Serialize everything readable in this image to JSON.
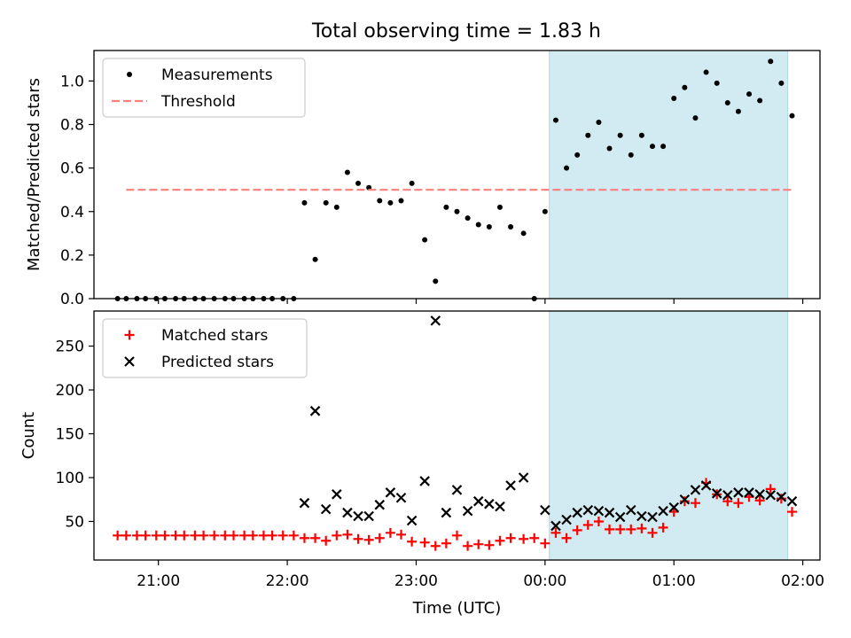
{
  "figure_title": "Total observing time = 1.83 h",
  "colors": {
    "highlight": "#add8e6",
    "threshold": "#ff7f7f",
    "measurement": "#000000",
    "matched": "#ff0000",
    "predicted": "#000000"
  },
  "chart_data": [
    {
      "type": "scatter",
      "title": "Total observing time = 1.83 h",
      "xlabel": "",
      "ylabel": "Matched/Predicted stars",
      "xlim": [
        "20:30",
        "02:08"
      ],
      "ylim": [
        0,
        1.14
      ],
      "x_ticks": [
        "21:00",
        "22:00",
        "23:00",
        "00:00",
        "01:00",
        "02:00"
      ],
      "y_ticks": [
        0.0,
        0.2,
        0.4,
        0.6,
        0.8,
        1.0
      ],
      "y_tick_labels": [
        "0.0",
        "0.2",
        "0.4",
        "0.6",
        "0.8",
        "1.0"
      ],
      "show_x_tick_labels": false,
      "grid": false,
      "legend_position": "top-left",
      "highlight_span": [
        "00:02",
        "01:53"
      ],
      "series": [
        {
          "name": "Measurements",
          "marker": "dot",
          "points": [
            [
              "20:41",
              0.0
            ],
            [
              "20:45",
              0.0
            ],
            [
              "20:50",
              0.0
            ],
            [
              "20:54",
              0.0
            ],
            [
              "20:59",
              0.0
            ],
            [
              "21:03",
              0.0
            ],
            [
              "21:08",
              0.0
            ],
            [
              "21:12",
              0.0
            ],
            [
              "21:17",
              0.0
            ],
            [
              "21:21",
              0.0
            ],
            [
              "21:26",
              0.0
            ],
            [
              "21:31",
              0.0
            ],
            [
              "21:35",
              0.0
            ],
            [
              "21:40",
              0.0
            ],
            [
              "21:44",
              0.0
            ],
            [
              "21:49",
              0.0
            ],
            [
              "21:53",
              0.0
            ],
            [
              "21:58",
              0.0
            ],
            [
              "22:03",
              0.0
            ],
            [
              "22:08",
              0.44
            ],
            [
              "22:13",
              0.18
            ],
            [
              "22:18",
              0.44
            ],
            [
              "22:23",
              0.42
            ],
            [
              "22:28",
              0.58
            ],
            [
              "22:33",
              0.53
            ],
            [
              "22:38",
              0.51
            ],
            [
              "22:43",
              0.45
            ],
            [
              "22:48",
              0.44
            ],
            [
              "22:53",
              0.45
            ],
            [
              "22:58",
              0.53
            ],
            [
              "23:04",
              0.27
            ],
            [
              "23:09",
              0.08
            ],
            [
              "23:14",
              0.42
            ],
            [
              "23:19",
              0.4
            ],
            [
              "23:24",
              0.37
            ],
            [
              "23:29",
              0.34
            ],
            [
              "23:34",
              0.33
            ],
            [
              "23:39",
              0.42
            ],
            [
              "23:44",
              0.33
            ],
            [
              "23:50",
              0.3
            ],
            [
              "23:55",
              0.0
            ],
            [
              "00:00",
              0.4
            ],
            [
              "00:05",
              0.82
            ],
            [
              "00:10",
              0.6
            ],
            [
              "00:15",
              0.66
            ],
            [
              "00:20",
              0.75
            ],
            [
              "00:25",
              0.81
            ],
            [
              "00:30",
              0.69
            ],
            [
              "00:35",
              0.75
            ],
            [
              "00:40",
              0.66
            ],
            [
              "00:45",
              0.75
            ],
            [
              "00:50",
              0.7
            ],
            [
              "00:55",
              0.7
            ],
            [
              "01:00",
              0.92
            ],
            [
              "01:05",
              0.97
            ],
            [
              "01:10",
              0.83
            ],
            [
              "01:15",
              1.04
            ],
            [
              "01:20",
              0.99
            ],
            [
              "01:25",
              0.9
            ],
            [
              "01:30",
              0.86
            ],
            [
              "01:35",
              0.94
            ],
            [
              "01:40",
              0.91
            ],
            [
              "01:45",
              1.09
            ],
            [
              "01:50",
              0.99
            ],
            [
              "01:55",
              0.84
            ]
          ]
        },
        {
          "name": "Threshold",
          "marker": "dashed-line",
          "points": [
            [
              "20:45",
              0.5
            ],
            [
              "01:56",
              0.5
            ]
          ]
        }
      ]
    },
    {
      "type": "scatter",
      "title": "",
      "xlabel": "Time (UTC)",
      "ylabel": "Count",
      "xlim": [
        "20:30",
        "02:08"
      ],
      "ylim": [
        6,
        290
      ],
      "x_ticks": [
        "21:00",
        "22:00",
        "23:00",
        "00:00",
        "01:00",
        "02:00"
      ],
      "y_ticks": [
        50,
        100,
        150,
        200,
        250
      ],
      "grid": false,
      "legend_position": "top-left",
      "highlight_span": [
        "00:02",
        "01:53"
      ],
      "series": [
        {
          "name": "Matched stars",
          "marker": "plus",
          "points": [
            [
              "20:41",
              34
            ],
            [
              "20:45",
              34
            ],
            [
              "20:50",
              34
            ],
            [
              "20:54",
              34
            ],
            [
              "20:59",
              34
            ],
            [
              "21:03",
              34
            ],
            [
              "21:08",
              34
            ],
            [
              "21:12",
              34
            ],
            [
              "21:17",
              34
            ],
            [
              "21:21",
              34
            ],
            [
              "21:26",
              34
            ],
            [
              "21:31",
              34
            ],
            [
              "21:35",
              34
            ],
            [
              "21:40",
              34
            ],
            [
              "21:44",
              34
            ],
            [
              "21:49",
              34
            ],
            [
              "21:53",
              34
            ],
            [
              "21:58",
              34
            ],
            [
              "22:03",
              34
            ],
            [
              "22:08",
              31
            ],
            [
              "22:13",
              31
            ],
            [
              "22:18",
              28
            ],
            [
              "22:23",
              34
            ],
            [
              "22:28",
              35
            ],
            [
              "22:33",
              30
            ],
            [
              "22:38",
              29
            ],
            [
              "22:43",
              31
            ],
            [
              "22:48",
              37
            ],
            [
              "22:53",
              35
            ],
            [
              "22:58",
              27
            ],
            [
              "23:04",
              26
            ],
            [
              "23:09",
              22
            ],
            [
              "23:14",
              25
            ],
            [
              "23:19",
              34
            ],
            [
              "23:24",
              22
            ],
            [
              "23:29",
              24
            ],
            [
              "23:34",
              23
            ],
            [
              "23:39",
              28
            ],
            [
              "23:44",
              31
            ],
            [
              "23:50",
              30
            ],
            [
              "23:55",
              31
            ],
            [
              "00:00",
              25
            ],
            [
              "00:05",
              37
            ],
            [
              "00:10",
              31
            ],
            [
              "00:15",
              40
            ],
            [
              "00:20",
              46
            ],
            [
              "00:25",
              50
            ],
            [
              "00:30",
              41
            ],
            [
              "00:35",
              41
            ],
            [
              "00:40",
              41
            ],
            [
              "00:45",
              42
            ],
            [
              "00:50",
              37
            ],
            [
              "00:55",
              43
            ],
            [
              "01:00",
              61
            ],
            [
              "01:05",
              73
            ],
            [
              "01:10",
              71
            ],
            [
              "01:15",
              94
            ],
            [
              "01:20",
              81
            ],
            [
              "01:25",
              73
            ],
            [
              "01:30",
              71
            ],
            [
              "01:35",
              78
            ],
            [
              "01:40",
              74
            ],
            [
              "01:45",
              87
            ],
            [
              "01:50",
              76
            ],
            [
              "01:55",
              61
            ]
          ]
        },
        {
          "name": "Predicted stars",
          "marker": "x",
          "points": [
            [
              "22:08",
              71
            ],
            [
              "22:13",
              176
            ],
            [
              "22:18",
              64
            ],
            [
              "22:23",
              81
            ],
            [
              "22:28",
              60
            ],
            [
              "22:33",
              56
            ],
            [
              "22:38",
              56
            ],
            [
              "22:43",
              69
            ],
            [
              "22:48",
              83
            ],
            [
              "22:53",
              77
            ],
            [
              "22:58",
              51
            ],
            [
              "23:04",
              96
            ],
            [
              "23:09",
              279
            ],
            [
              "23:14",
              60
            ],
            [
              "23:19",
              86
            ],
            [
              "23:24",
              62
            ],
            [
              "23:29",
              73
            ],
            [
              "23:34",
              70
            ],
            [
              "23:39",
              67
            ],
            [
              "23:44",
              91
            ],
            [
              "23:50",
              100
            ],
            [
              "00:00",
              63
            ],
            [
              "00:05",
              45
            ],
            [
              "00:10",
              52
            ],
            [
              "00:15",
              60
            ],
            [
              "00:20",
              63
            ],
            [
              "00:25",
              62
            ],
            [
              "00:30",
              60
            ],
            [
              "00:35",
              55
            ],
            [
              "00:40",
              63
            ],
            [
              "00:45",
              56
            ],
            [
              "00:50",
              55
            ],
            [
              "00:55",
              62
            ],
            [
              "01:00",
              66
            ],
            [
              "01:05",
              75
            ],
            [
              "01:10",
              86
            ],
            [
              "01:15",
              91
            ],
            [
              "01:20",
              82
            ],
            [
              "01:25",
              80
            ],
            [
              "01:30",
              83
            ],
            [
              "01:35",
              83
            ],
            [
              "01:40",
              81
            ],
            [
              "01:45",
              80
            ],
            [
              "01:50",
              78
            ],
            [
              "01:55",
              73
            ]
          ]
        }
      ]
    }
  ]
}
